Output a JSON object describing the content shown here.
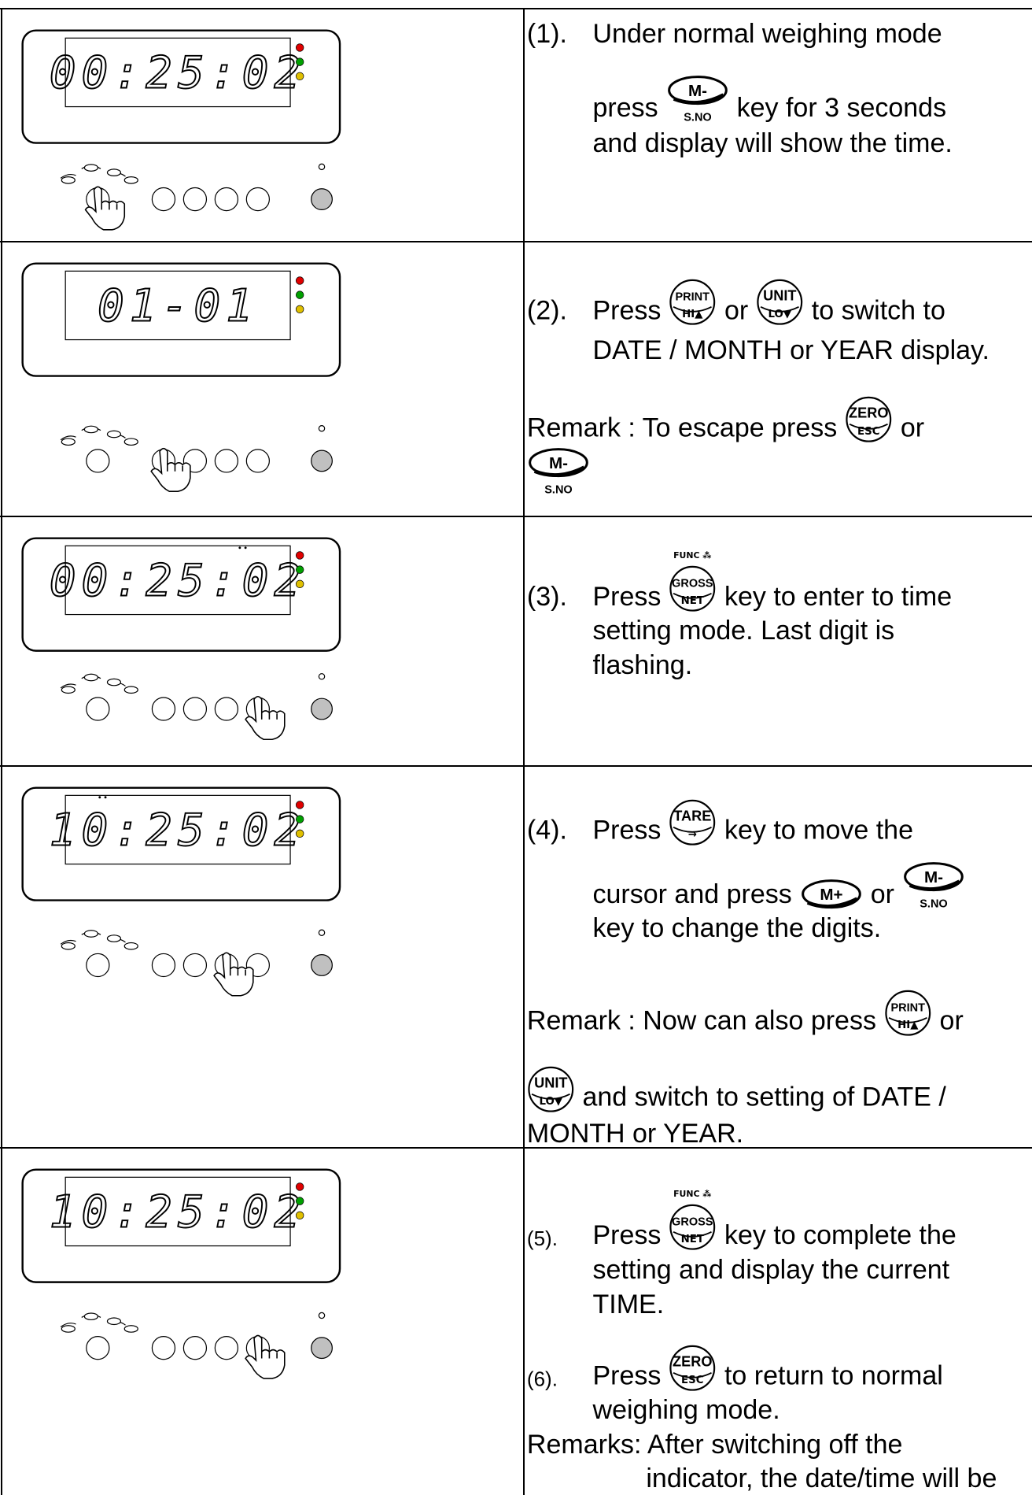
{
  "rows": [
    {
      "display": "00:25:02",
      "lines": [
        [
          "(1).",
          "Under normal weighing mode"
        ],
        [
          "press",
          {
            "top": "M-",
            "below": "S.NO"
          },
          "key for 3 seconds"
        ],
        [
          "and display will show the time."
        ]
      ]
    },
    {
      "display": "01-01",
      "lines": [
        [
          "(2).",
          "Press",
          {
            "top": "PRINT",
            "bottom": "HI▲"
          },
          "or",
          {
            "top": "UNIT",
            "bottom": "LO▼"
          },
          "to switch to"
        ],
        [
          "DATE / MONTH or YEAR display."
        ],
        [
          "Remark : To escape press",
          {
            "top": "ZERO",
            "bottom": "ESC"
          },
          "or"
        ],
        [
          {
            "top": "M-",
            "below": "S.NO"
          }
        ]
      ]
    },
    {
      "display": "00:25:02",
      "lines": [
        [
          "(3).",
          "Press",
          {
            "above": "FUNC ⁂",
            "top": "GROSS",
            "bottom": "NET"
          },
          "key to enter to time"
        ],
        [
          "setting mode. Last digit is"
        ],
        [
          "flashing."
        ]
      ]
    },
    {
      "display": "10:25:02",
      "lines": [
        [
          "(4).",
          "Press",
          {
            "top": "TARE",
            "bottom": "→"
          },
          "key to move the"
        ],
        [
          "cursor and press",
          {
            "top": "M+"
          },
          "or",
          {
            "top": "M-",
            "below": "S.NO"
          }
        ],
        [
          "key to change the digits."
        ],
        [
          "Remark : Now can also press",
          {
            "top": "PRINT",
            "bottom": "HI▲"
          },
          "or"
        ],
        [
          {
            "top": "UNIT",
            "bottom": "LO▼"
          },
          "and switch to setting of DATE /"
        ],
        [
          "MONTH or YEAR."
        ]
      ]
    },
    {
      "display": "10:25:02",
      "lines": [
        [
          "(5).",
          "Press",
          {
            "above": "FUNC ⁂",
            "top": "GROSS",
            "bottom": "NET"
          },
          "key to complete the"
        ],
        [
          "setting and display the current"
        ],
        [
          "TIME."
        ],
        [
          "(6).",
          "Press",
          {
            "top": "ZERO",
            "bottom": "ESC"
          },
          "to return to normal"
        ],
        [
          "weighing mode."
        ],
        [
          "Remarks: After switching off the"
        ],
        [
          "indicator, the date/time will be"
        ]
      ]
    }
  ]
}
